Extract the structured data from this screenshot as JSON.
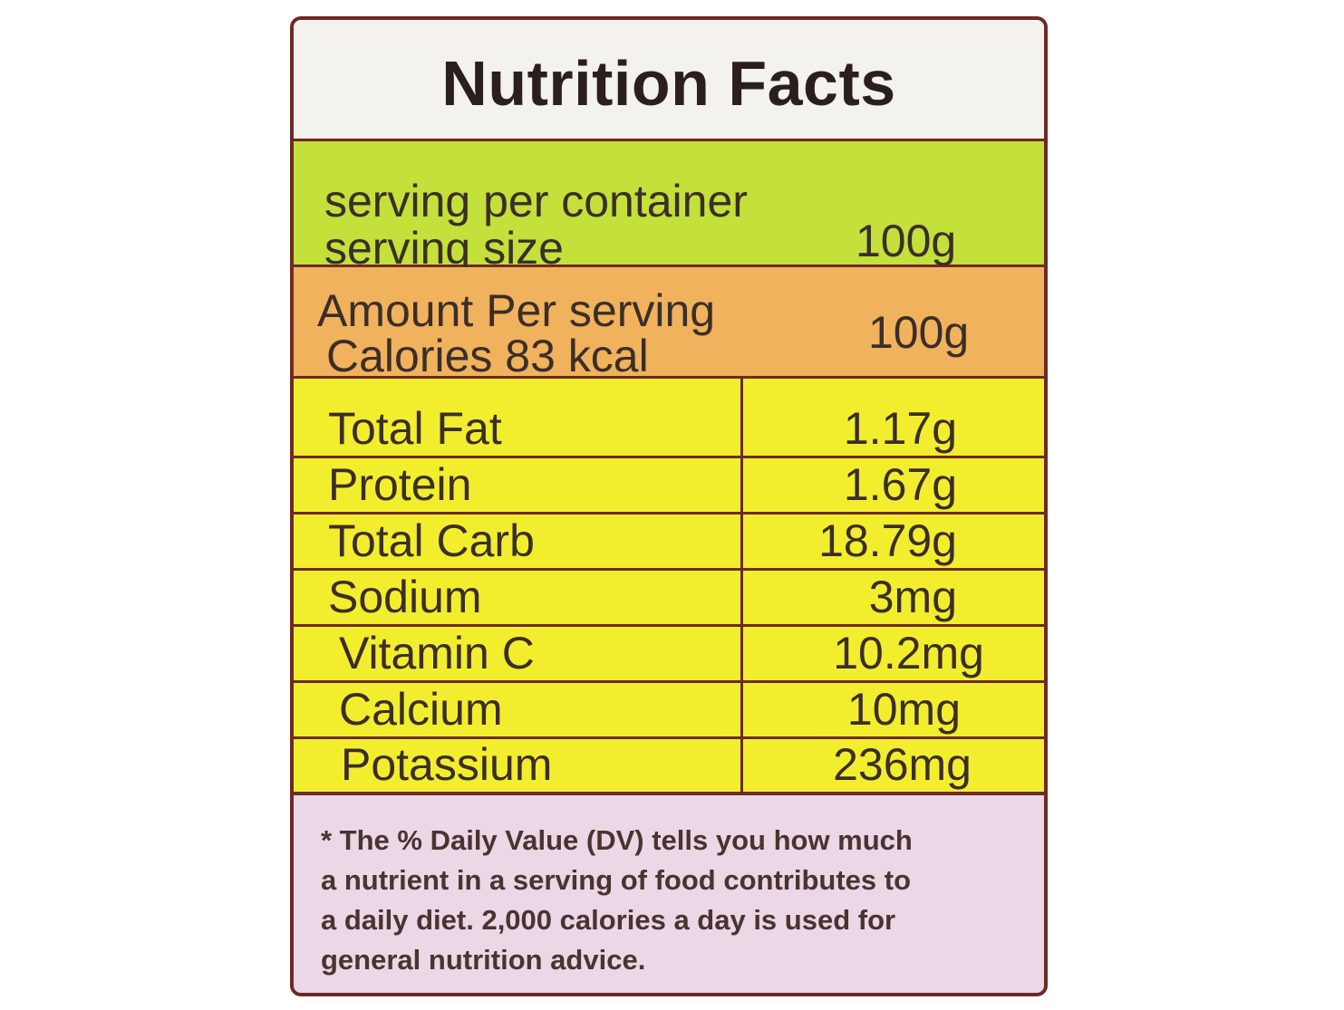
{
  "title": "Nutrition Facts",
  "serving": {
    "per_container_label": "serving per container",
    "size_label": "serving size",
    "size_value": "100g"
  },
  "amount": {
    "label": "Amount Per serving",
    "calories_label": "Calories 83 kcal",
    "value": "100g"
  },
  "nutrients": [
    {
      "name": "Total Fat",
      "value": "1.17g"
    },
    {
      "name": "Protein",
      "value": "1.67g"
    },
    {
      "name": "Total Carb",
      "value": "18.79g"
    },
    {
      "name": "Sodium",
      "value": "3mg"
    },
    {
      "name": "Vitamin C",
      "value": "10.2mg"
    },
    {
      "name": "Calcium",
      "value": "10mg"
    },
    {
      "name": "Potassium",
      "value": "236mg"
    }
  ],
  "footnote": {
    "lines": [
      "* The % Daily Value (DV) tells you how much",
      "a nutrient in a serving of food contributes to",
      "a daily diet. 2,000 calories a day is used for",
      "general nutrition advice."
    ]
  },
  "colors": {
    "border": "#6d2a26",
    "title_band": "#f4f2ec",
    "serving_band": "#c4e03a",
    "amount_band": "#f0b25c",
    "nutrient_band": "#f2ee2e",
    "footnote_band": "#ebd7e5"
  }
}
